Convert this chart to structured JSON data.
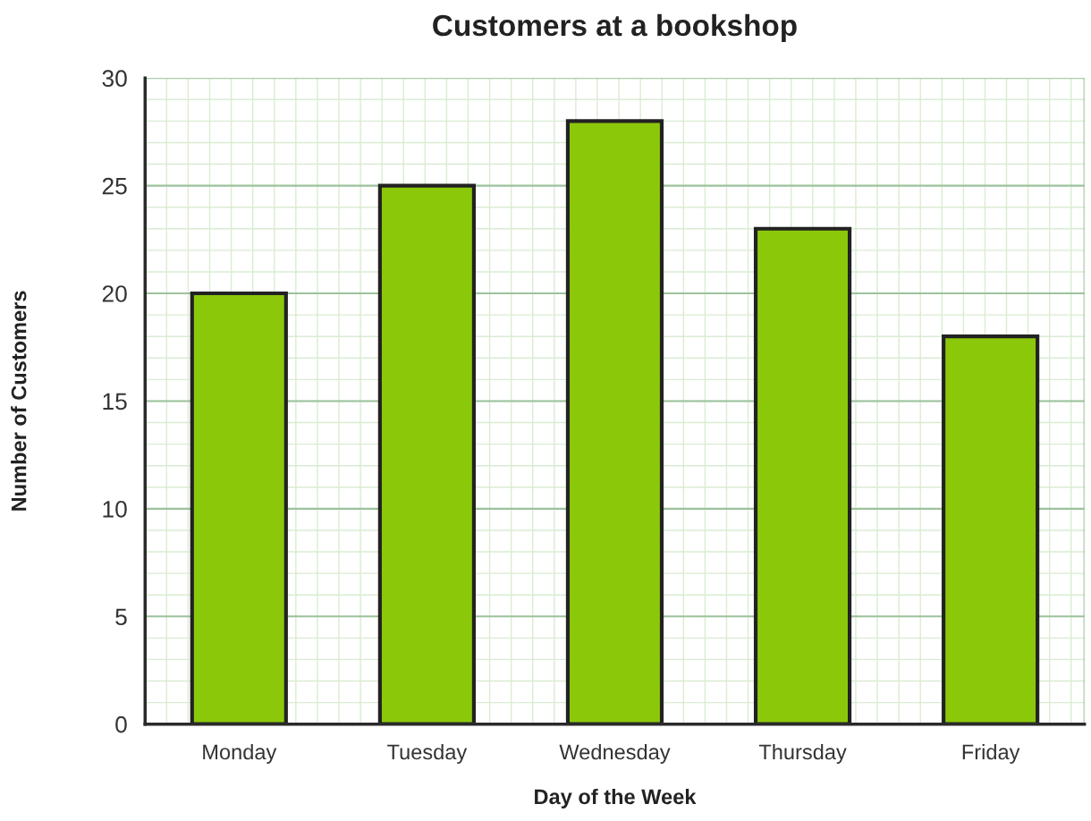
{
  "chart_data": {
    "type": "bar",
    "title": "Customers at a bookshop",
    "xlabel": "Day of the Week",
    "ylabel": "Number of Customers",
    "categories": [
      "Monday",
      "Tuesday",
      "Wednesday",
      "Thursday",
      "Friday"
    ],
    "values": [
      20,
      25,
      28,
      23,
      18
    ],
    "color": "#8cc80a",
    "ylim": [
      0,
      30
    ],
    "yticks": [
      0,
      5,
      10,
      15,
      20,
      25,
      30
    ],
    "grid": true
  }
}
